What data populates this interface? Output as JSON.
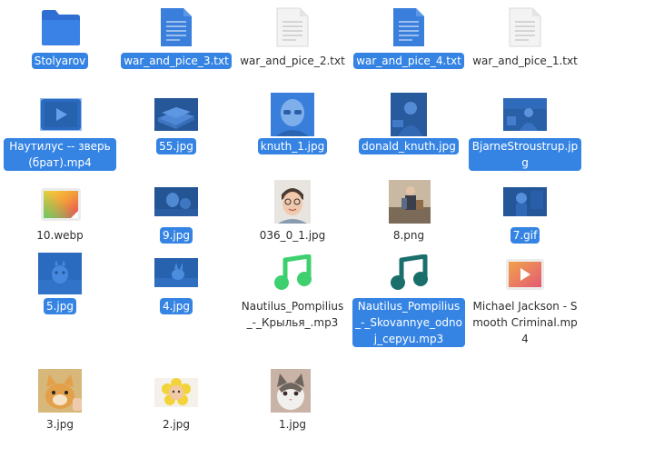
{
  "colors": {
    "selection": "#3584e4",
    "selection_text": "#ffffff",
    "text": "#2e2e2e"
  },
  "files": [
    {
      "id": "stolyarov",
      "name": "Stolyarov",
      "kind": "folder",
      "icon": "folder-icon",
      "selected": true
    },
    {
      "id": "war3",
      "name": "war_and_pice_3.txt",
      "kind": "text",
      "icon": "text-file-icon",
      "selected": true
    },
    {
      "id": "war2",
      "name": "war_and_pice_2.txt",
      "kind": "text",
      "icon": "text-file-icon",
      "selected": false
    },
    {
      "id": "war4",
      "name": "war_and_pice_4.txt",
      "kind": "text",
      "icon": "text-file-icon",
      "selected": true
    },
    {
      "id": "war1",
      "name": "war_and_pice_1.txt",
      "kind": "text",
      "icon": "text-file-icon",
      "selected": false
    },
    {
      "id": "nautilus_mp4",
      "name": "Наутилус -- зверь (брат).mp4",
      "kind": "video",
      "icon": "video-thumbnail",
      "selected": true
    },
    {
      "id": "j55",
      "name": "55.jpg",
      "kind": "image",
      "icon": "books-thumbnail",
      "selected": true
    },
    {
      "id": "knuth1",
      "name": "knuth_1.jpg",
      "kind": "image",
      "icon": "portrait-thumbnail",
      "selected": true
    },
    {
      "id": "dknuth",
      "name": "donald_knuth.jpg",
      "kind": "image",
      "icon": "photo-thumbnail",
      "selected": true
    },
    {
      "id": "bjarne",
      "name": "BjarneStroustrup.jpg",
      "kind": "image",
      "icon": "photo-thumbnail",
      "selected": true
    },
    {
      "id": "webp10",
      "name": "10.webp",
      "kind": "image",
      "icon": "image-file-icon",
      "selected": false
    },
    {
      "id": "j9",
      "name": "9.jpg",
      "kind": "image",
      "icon": "photo-thumbnail",
      "selected": true
    },
    {
      "id": "j036",
      "name": "036_0_1.jpg",
      "kind": "image",
      "icon": "portrait-thumbnail",
      "selected": false
    },
    {
      "id": "p8",
      "name": "8.png",
      "kind": "image",
      "icon": "photo-thumbnail",
      "selected": false
    },
    {
      "id": "g7",
      "name": "7.gif",
      "kind": "image",
      "icon": "photo-thumbnail",
      "selected": true
    },
    {
      "id": "j5",
      "name": "5.jpg",
      "kind": "image",
      "icon": "photo-thumbnail",
      "selected": true
    },
    {
      "id": "j4",
      "name": "4.jpg",
      "kind": "image",
      "icon": "photo-thumbnail",
      "selected": true
    },
    {
      "id": "np_kr",
      "name": "Nautilus_Pompilius_-_Крылья_.mp3",
      "kind": "audio",
      "icon": "music-note-icon",
      "selected": false
    },
    {
      "id": "np_sk",
      "name": "Nautilus_Pompilius_-_Skovannye_odnoj_cepyu.mp3",
      "kind": "audio",
      "icon": "music-note-icon",
      "selected": true
    },
    {
      "id": "mj",
      "name": "Michael Jackson - Smooth Criminal.mp4",
      "kind": "video",
      "icon": "video-file-icon",
      "selected": false
    },
    {
      "id": "j3",
      "name": "3.jpg",
      "kind": "image",
      "icon": "cat-thumbnail",
      "selected": false
    },
    {
      "id": "j2",
      "name": "2.jpg",
      "kind": "image",
      "icon": "flower-thumbnail",
      "selected": false
    },
    {
      "id": "j1",
      "name": "1.jpg",
      "kind": "image",
      "icon": "cat-thumbnail",
      "selected": false
    }
  ]
}
